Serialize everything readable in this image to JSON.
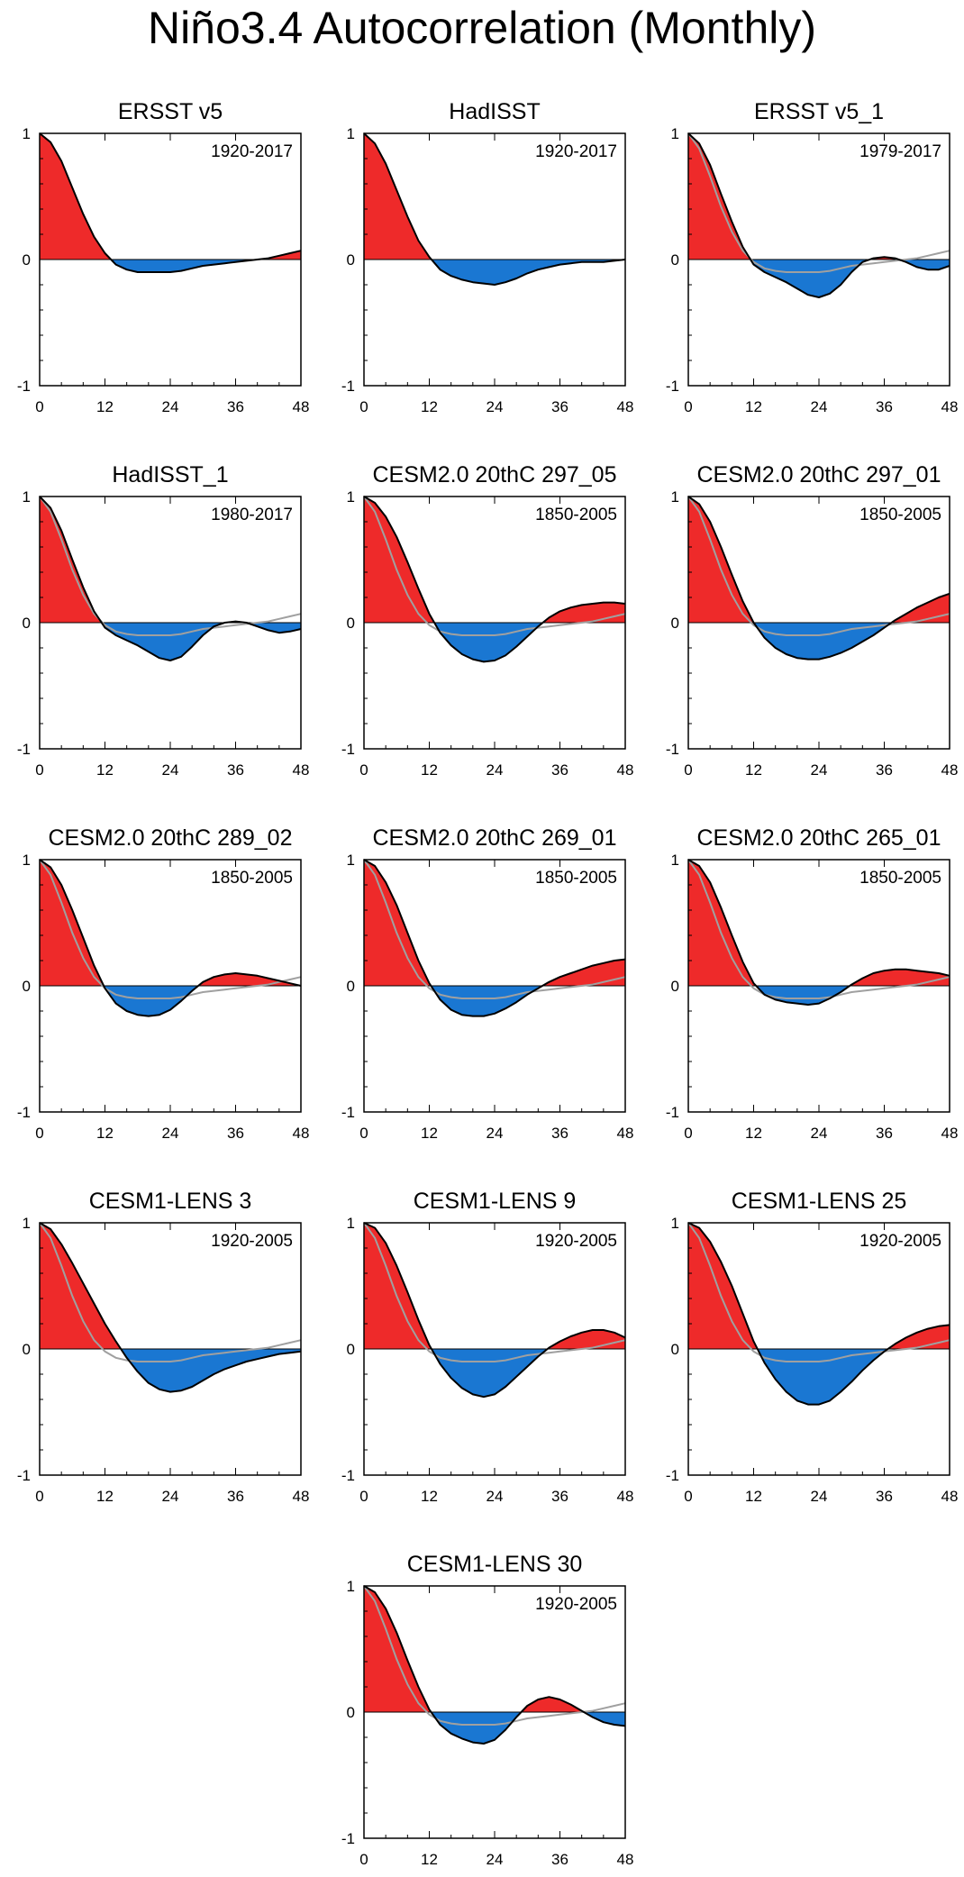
{
  "title": "Niño3.4 Autocorrelation (Monthly)",
  "colors": {
    "positive": "#ee2a2a",
    "negative": "#1a77d2",
    "line": "#000000",
    "reference": "#a0a0a0"
  },
  "chart_data": [
    {
      "type": "area",
      "title": "ERSST v5",
      "label": "1920-2017",
      "xlim": [
        0,
        48
      ],
      "ylim": [
        -1,
        1
      ],
      "xticks": [
        "0",
        "12",
        "24",
        "36",
        "48"
      ],
      "yticks": [
        "-1",
        "0",
        "1"
      ],
      "show_reference": false,
      "x": [
        0,
        2,
        4,
        6,
        8,
        10,
        12,
        14,
        16,
        18,
        20,
        22,
        24,
        26,
        28,
        30,
        32,
        34,
        36,
        38,
        40,
        42,
        44,
        46,
        48
      ],
      "values": [
        1,
        0.93,
        0.78,
        0.57,
        0.36,
        0.18,
        0.05,
        -0.04,
        -0.08,
        -0.1,
        -0.1,
        -0.1,
        -0.1,
        -0.09,
        -0.07,
        -0.05,
        -0.04,
        -0.03,
        -0.02,
        -0.01,
        0,
        0.01,
        0.03,
        0.05,
        0.07
      ]
    },
    {
      "type": "area",
      "title": "HadISST",
      "label": "1920-2017",
      "xlim": [
        0,
        48
      ],
      "ylim": [
        -1,
        1
      ],
      "xticks": [
        "0",
        "12",
        "24",
        "36",
        "48"
      ],
      "yticks": [
        "-1",
        "0",
        "1"
      ],
      "show_reference": false,
      "x": [
        0,
        2,
        4,
        6,
        8,
        10,
        12,
        14,
        16,
        18,
        20,
        22,
        24,
        26,
        28,
        30,
        32,
        34,
        36,
        38,
        40,
        42,
        44,
        46,
        48
      ],
      "values": [
        1,
        0.92,
        0.76,
        0.55,
        0.34,
        0.15,
        0.02,
        -0.08,
        -0.13,
        -0.16,
        -0.18,
        -0.19,
        -0.2,
        -0.18,
        -0.15,
        -0.11,
        -0.08,
        -0.06,
        -0.04,
        -0.03,
        -0.02,
        -0.02,
        -0.02,
        -0.01,
        0
      ]
    },
    {
      "type": "area",
      "title": "ERSST v5_1",
      "label": "1979-2017",
      "xlim": [
        0,
        48
      ],
      "ylim": [
        -1,
        1
      ],
      "xticks": [
        "0",
        "12",
        "24",
        "36",
        "48"
      ],
      "yticks": [
        "-1",
        "0",
        "1"
      ],
      "show_reference": true,
      "x": [
        0,
        2,
        4,
        6,
        8,
        10,
        12,
        14,
        16,
        18,
        20,
        22,
        24,
        26,
        28,
        30,
        32,
        34,
        36,
        38,
        40,
        42,
        44,
        46,
        48
      ],
      "values": [
        1,
        0.92,
        0.75,
        0.52,
        0.3,
        0.1,
        -0.04,
        -0.1,
        -0.14,
        -0.18,
        -0.23,
        -0.28,
        -0.3,
        -0.27,
        -0.2,
        -0.1,
        -0.02,
        0.01,
        0.02,
        0.01,
        -0.02,
        -0.06,
        -0.08,
        -0.08,
        -0.05
      ]
    },
    {
      "type": "area",
      "title": "HadISST_1",
      "label": "1980-2017",
      "xlim": [
        0,
        48
      ],
      "ylim": [
        -1,
        1
      ],
      "xticks": [
        "0",
        "12",
        "24",
        "36",
        "48"
      ],
      "yticks": [
        "-1",
        "0",
        "1"
      ],
      "show_reference": true,
      "x": [
        0,
        2,
        4,
        6,
        8,
        10,
        12,
        14,
        16,
        18,
        20,
        22,
        24,
        26,
        28,
        30,
        32,
        34,
        36,
        38,
        40,
        42,
        44,
        46,
        48
      ],
      "values": [
        1,
        0.91,
        0.73,
        0.5,
        0.28,
        0.09,
        -0.04,
        -0.1,
        -0.14,
        -0.18,
        -0.23,
        -0.28,
        -0.3,
        -0.27,
        -0.19,
        -0.1,
        -0.03,
        0,
        0.01,
        0,
        -0.03,
        -0.06,
        -0.08,
        -0.07,
        -0.05
      ]
    },
    {
      "type": "area",
      "title": "CESM2.0 20thC 297_05",
      "label": "1850-2005",
      "xlim": [
        0,
        48
      ],
      "ylim": [
        -1,
        1
      ],
      "xticks": [
        "0",
        "12",
        "24",
        "36",
        "48"
      ],
      "yticks": [
        "-1",
        "0",
        "1"
      ],
      "show_reference": true,
      "x": [
        0,
        2,
        4,
        6,
        8,
        10,
        12,
        14,
        16,
        18,
        20,
        22,
        24,
        26,
        28,
        30,
        32,
        34,
        36,
        38,
        40,
        42,
        44,
        46,
        48
      ],
      "values": [
        1,
        0.95,
        0.84,
        0.68,
        0.48,
        0.27,
        0.07,
        -0.08,
        -0.18,
        -0.25,
        -0.29,
        -0.31,
        -0.3,
        -0.26,
        -0.19,
        -0.11,
        -0.03,
        0.04,
        0.09,
        0.12,
        0.14,
        0.15,
        0.16,
        0.16,
        0.15
      ]
    },
    {
      "type": "area",
      "title": "CESM2.0 20thC 297_01",
      "label": "1850-2005",
      "xlim": [
        0,
        48
      ],
      "ylim": [
        -1,
        1
      ],
      "xticks": [
        "0",
        "12",
        "24",
        "36",
        "48"
      ],
      "yticks": [
        "-1",
        "0",
        "1"
      ],
      "show_reference": true,
      "x": [
        0,
        2,
        4,
        6,
        8,
        10,
        12,
        14,
        16,
        18,
        20,
        22,
        24,
        26,
        28,
        30,
        32,
        34,
        36,
        38,
        40,
        42,
        44,
        46,
        48
      ],
      "values": [
        1,
        0.94,
        0.8,
        0.6,
        0.38,
        0.17,
        0,
        -0.12,
        -0.2,
        -0.25,
        -0.28,
        -0.29,
        -0.29,
        -0.27,
        -0.24,
        -0.2,
        -0.15,
        -0.1,
        -0.04,
        0.02,
        0.07,
        0.12,
        0.16,
        0.2,
        0.23
      ]
    },
    {
      "type": "area",
      "title": "CESM2.0 20thC 289_02",
      "label": "1850-2005",
      "xlim": [
        0,
        48
      ],
      "ylim": [
        -1,
        1
      ],
      "xticks": [
        "0",
        "12",
        "24",
        "36",
        "48"
      ],
      "yticks": [
        "-1",
        "0",
        "1"
      ],
      "show_reference": true,
      "x": [
        0,
        2,
        4,
        6,
        8,
        10,
        12,
        14,
        16,
        18,
        20,
        22,
        24,
        26,
        28,
        30,
        32,
        34,
        36,
        38,
        40,
        42,
        44,
        46,
        48
      ],
      "values": [
        1,
        0.94,
        0.8,
        0.6,
        0.38,
        0.16,
        -0.02,
        -0.14,
        -0.2,
        -0.23,
        -0.24,
        -0.23,
        -0.19,
        -0.12,
        -0.04,
        0.03,
        0.07,
        0.09,
        0.1,
        0.09,
        0.08,
        0.06,
        0.04,
        0.02,
        0
      ]
    },
    {
      "type": "area",
      "title": "CESM2.0 20thC 269_01",
      "label": "1850-2005",
      "xlim": [
        0,
        48
      ],
      "ylim": [
        -1,
        1
      ],
      "xticks": [
        "0",
        "12",
        "24",
        "36",
        "48"
      ],
      "yticks": [
        "-1",
        "0",
        "1"
      ],
      "show_reference": true,
      "x": [
        0,
        2,
        4,
        6,
        8,
        10,
        12,
        14,
        16,
        18,
        20,
        22,
        24,
        26,
        28,
        30,
        32,
        34,
        36,
        38,
        40,
        42,
        44,
        46,
        48
      ],
      "values": [
        1,
        0.95,
        0.82,
        0.64,
        0.42,
        0.2,
        0.02,
        -0.11,
        -0.19,
        -0.23,
        -0.24,
        -0.24,
        -0.22,
        -0.18,
        -0.13,
        -0.07,
        -0.02,
        0.03,
        0.07,
        0.1,
        0.13,
        0.16,
        0.18,
        0.2,
        0.21
      ]
    },
    {
      "type": "area",
      "title": "CESM2.0 20thC 265_01",
      "label": "1850-2005",
      "xlim": [
        0,
        48
      ],
      "ylim": [
        -1,
        1
      ],
      "xticks": [
        "0",
        "12",
        "24",
        "36",
        "48"
      ],
      "yticks": [
        "-1",
        "0",
        "1"
      ],
      "show_reference": true,
      "x": [
        0,
        2,
        4,
        6,
        8,
        10,
        12,
        14,
        16,
        18,
        20,
        22,
        24,
        26,
        28,
        30,
        32,
        34,
        36,
        38,
        40,
        42,
        44,
        46,
        48
      ],
      "values": [
        1,
        0.95,
        0.82,
        0.62,
        0.4,
        0.19,
        0.02,
        -0.07,
        -0.11,
        -0.13,
        -0.14,
        -0.15,
        -0.14,
        -0.1,
        -0.05,
        0.01,
        0.06,
        0.1,
        0.12,
        0.13,
        0.13,
        0.12,
        0.11,
        0.1,
        0.08
      ]
    },
    {
      "type": "area",
      "title": "CESM1-LENS 3",
      "label": "1920-2005",
      "xlim": [
        0,
        48
      ],
      "ylim": [
        -1,
        1
      ],
      "xticks": [
        "0",
        "12",
        "24",
        "36",
        "48"
      ],
      "yticks": [
        "-1",
        "0",
        "1"
      ],
      "show_reference": true,
      "x": [
        0,
        2,
        4,
        6,
        8,
        10,
        12,
        14,
        16,
        18,
        20,
        22,
        24,
        26,
        28,
        30,
        32,
        34,
        36,
        38,
        40,
        42,
        44,
        46,
        48
      ],
      "values": [
        1,
        0.95,
        0.83,
        0.68,
        0.52,
        0.36,
        0.2,
        0.06,
        -0.07,
        -0.18,
        -0.27,
        -0.32,
        -0.34,
        -0.33,
        -0.3,
        -0.25,
        -0.2,
        -0.16,
        -0.13,
        -0.1,
        -0.08,
        -0.06,
        -0.04,
        -0.03,
        -0.02
      ]
    },
    {
      "type": "area",
      "title": "CESM1-LENS 9",
      "label": "1920-2005",
      "xlim": [
        0,
        48
      ],
      "ylim": [
        -1,
        1
      ],
      "xticks": [
        "0",
        "12",
        "24",
        "36",
        "48"
      ],
      "yticks": [
        "-1",
        "0",
        "1"
      ],
      "show_reference": true,
      "x": [
        0,
        2,
        4,
        6,
        8,
        10,
        12,
        14,
        16,
        18,
        20,
        22,
        24,
        26,
        28,
        30,
        32,
        34,
        36,
        38,
        40,
        42,
        44,
        46,
        48
      ],
      "values": [
        1,
        0.96,
        0.84,
        0.66,
        0.45,
        0.23,
        0.03,
        -0.12,
        -0.23,
        -0.31,
        -0.36,
        -0.38,
        -0.36,
        -0.3,
        -0.22,
        -0.14,
        -0.06,
        0.01,
        0.06,
        0.1,
        0.13,
        0.15,
        0.15,
        0.13,
        0.09
      ]
    },
    {
      "type": "area",
      "title": "CESM1-LENS 25",
      "label": "1920-2005",
      "xlim": [
        0,
        48
      ],
      "ylim": [
        -1,
        1
      ],
      "xticks": [
        "0",
        "12",
        "24",
        "36",
        "48"
      ],
      "yticks": [
        "-1",
        "0",
        "1"
      ],
      "show_reference": true,
      "x": [
        0,
        2,
        4,
        6,
        8,
        10,
        12,
        14,
        16,
        18,
        20,
        22,
        24,
        26,
        28,
        30,
        32,
        34,
        36,
        38,
        40,
        42,
        44,
        46,
        48
      ],
      "values": [
        1,
        0.96,
        0.85,
        0.69,
        0.5,
        0.28,
        0.06,
        -0.11,
        -0.24,
        -0.34,
        -0.41,
        -0.44,
        -0.44,
        -0.41,
        -0.34,
        -0.26,
        -0.17,
        -0.09,
        -0.02,
        0.04,
        0.09,
        0.13,
        0.16,
        0.18,
        0.19
      ]
    },
    {
      "type": "area",
      "title": "CESM1-LENS 30",
      "label": "1920-2005",
      "xlim": [
        0,
        48
      ],
      "ylim": [
        -1,
        1
      ],
      "xticks": [
        "0",
        "12",
        "24",
        "36",
        "48"
      ],
      "yticks": [
        "-1",
        "0",
        "1"
      ],
      "show_reference": true,
      "x": [
        0,
        2,
        4,
        6,
        8,
        10,
        12,
        14,
        16,
        18,
        20,
        22,
        24,
        26,
        28,
        30,
        32,
        34,
        36,
        38,
        40,
        42,
        44,
        46,
        48
      ],
      "values": [
        1,
        0.95,
        0.82,
        0.63,
        0.41,
        0.2,
        0.02,
        -0.1,
        -0.17,
        -0.21,
        -0.24,
        -0.25,
        -0.22,
        -0.14,
        -0.04,
        0.05,
        0.1,
        0.12,
        0.1,
        0.06,
        0.01,
        -0.04,
        -0.08,
        -0.1,
        -0.11
      ]
    }
  ],
  "reference_series": {
    "name": "reference",
    "x": [
      0,
      2,
      4,
      6,
      8,
      10,
      12,
      14,
      16,
      18,
      20,
      22,
      24,
      26,
      28,
      30,
      32,
      34,
      36,
      38,
      40,
      42,
      44,
      46,
      48
    ],
    "values": [
      1,
      0.88,
      0.66,
      0.42,
      0.22,
      0.07,
      -0.02,
      -0.07,
      -0.09,
      -0.1,
      -0.1,
      -0.1,
      -0.1,
      -0.09,
      -0.07,
      -0.05,
      -0.04,
      -0.03,
      -0.02,
      -0.01,
      0,
      0.01,
      0.03,
      0.05,
      0.07
    ]
  }
}
